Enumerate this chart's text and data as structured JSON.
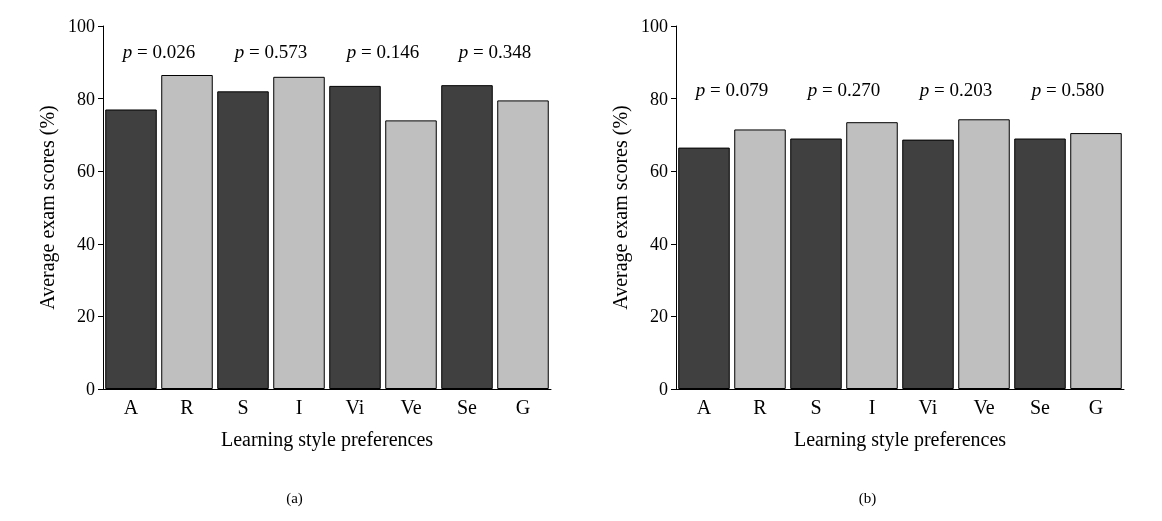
{
  "chart_data": [
    {
      "type": "bar",
      "categories": [
        "A",
        "R",
        "S",
        "I",
        "Vi",
        "Ve",
        "Se",
        "G"
      ],
      "values": [
        77,
        86.5,
        82,
        86,
        83.5,
        74,
        83.7,
        79.5
      ],
      "colors": [
        "#404040",
        "#bfbfbf",
        "#404040",
        "#bfbfbf",
        "#404040",
        "#bfbfbf",
        "#404040",
        "#bfbfbf"
      ],
      "xlabel": "Learning style preferences",
      "ylabel": "Average exam scores (%)",
      "ylim": [
        0,
        100
      ],
      "yticks": [
        0,
        20,
        40,
        60,
        80,
        100
      ],
      "annotations": [
        "p = 0.026",
        "p = 0.573",
        "p = 0.146",
        "p = 0.348",
        "(a)"
      ]
    },
    {
      "type": "bar",
      "categories": [
        "A",
        "R",
        "S",
        "I",
        "Vi",
        "Ve",
        "Se",
        "G"
      ],
      "values": [
        66.5,
        71.5,
        69,
        73.5,
        68.7,
        74.3,
        69,
        70.5
      ],
      "colors": [
        "#404040",
        "#bfbfbf",
        "#404040",
        "#bfbfbf",
        "#404040",
        "#bfbfbf",
        "#404040",
        "#bfbfbf"
      ],
      "xlabel": "Learning style preferences",
      "ylabel": "Average exam scores (%)",
      "ylim": [
        0,
        100
      ],
      "yticks": [
        0,
        20,
        40,
        60,
        80,
        100
      ],
      "annotations": [
        "p = 0.079",
        "p = 0.270",
        "p = 0.203",
        "p = 0.580",
        "(b)"
      ]
    }
  ]
}
